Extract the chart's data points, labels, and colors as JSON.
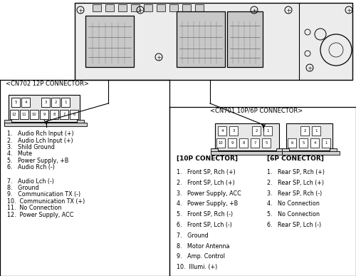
{
  "bg_color": "#ffffff",
  "border_color": "#000000",
  "cn702_label": "<CN702 12P CONNECTOR>",
  "cn701_label": "<CN701 10P/6P CONNECTOR>",
  "cn702_items": [
    "1.   Audio Rch Input (+)",
    "2.   Audio Lch Input (+)",
    "3.   Shild Ground",
    "4.   Mute",
    "5.   Power Supply, +B",
    "6.   Audio Rch (-)",
    "",
    "7.   Audio Lch (-)",
    "8.   Ground",
    "9.   Communication TX (-)",
    "10.  Communication TX (+)",
    "11.  No Connection",
    "12.  Power Supply, ACC"
  ],
  "tenp_label": "[10P CONECTOR]",
  "sixp_label": "[6P CONECTOR]",
  "tenp_items": [
    "1.   Front SP, Rch (+)",
    "2.   Front SP, Lch (+)",
    "3.   Power Supply, ACC",
    "4.   Power Supply, +B",
    "5.   Front SP, Rch (-)",
    "6.   Front SP, Lch (-)",
    "7.   Ground",
    "8.   Motor Antenna",
    "9.   Amp. Control",
    "10.  Illumi. (+)"
  ],
  "sixp_items": [
    "1.   Rear SP, Rch (+)",
    "2.   Rear SP, Lch (+)",
    "3.   Rear SP, Rch (-)",
    "4.   No Connection",
    "5.   No Connection",
    "6.   Rear SP, Lch (-)"
  ]
}
